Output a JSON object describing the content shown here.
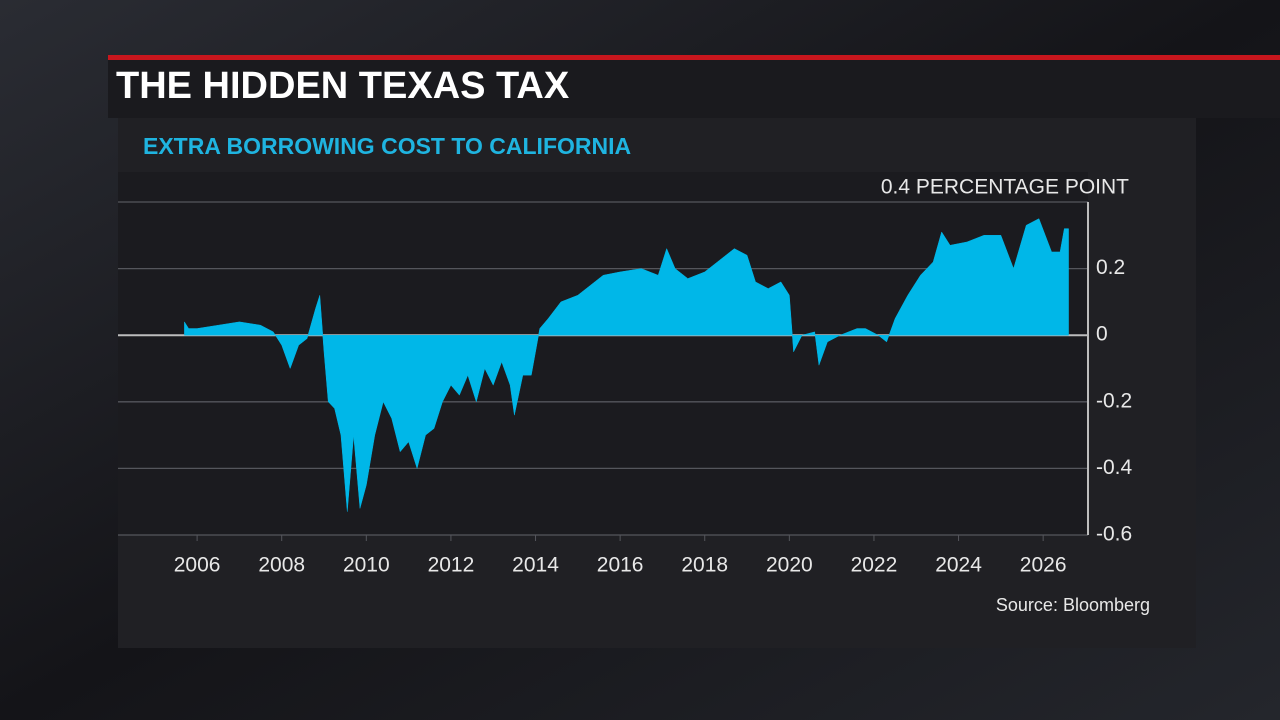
{
  "chart_data": {
    "type": "area",
    "title": "THE HIDDEN TEXAS TAX",
    "subtitle": "EXTRA BORROWING COST TO CALIFORNIA",
    "source": "Source: Bloomberg",
    "color": "#00b7e8",
    "x": [
      2005.7,
      2005.8,
      2006,
      2006.5,
      2007,
      2007.5,
      2007.8,
      2008,
      2008.2,
      2008.4,
      2008.6,
      2008.8,
      2008.9,
      2009.0,
      2009.1,
      2009.25,
      2009.4,
      2009.55,
      2009.7,
      2009.85,
      2010,
      2010.2,
      2010.4,
      2010.6,
      2010.8,
      2011,
      2011.2,
      2011.4,
      2011.6,
      2011.8,
      2012,
      2012.2,
      2012.4,
      2012.6,
      2012.8,
      2013,
      2013.2,
      2013.4,
      2013.5,
      2013.7,
      2013.9,
      2014.1,
      2014.3,
      2014.6,
      2015,
      2015.3,
      2015.6,
      2016,
      2016.5,
      2016.9,
      2017.1,
      2017.3,
      2017.6,
      2018,
      2018.3,
      2018.7,
      2019,
      2019.2,
      2019.5,
      2019.8,
      2020,
      2020.1,
      2020.3,
      2020.6,
      2020.7,
      2020.9,
      2021.2,
      2021.6,
      2021.8,
      2022.1,
      2022.3,
      2022.5,
      2022.8,
      2023.1,
      2023.4,
      2023.6,
      2023.8,
      2024.2,
      2024.6,
      2025,
      2025.3,
      2025.6,
      2025.9,
      2026.2,
      2026.4,
      2026.5,
      2026.6
    ],
    "values": [
      0.04,
      0.02,
      0.02,
      0.03,
      0.04,
      0.03,
      0.01,
      -0.03,
      -0.1,
      -0.03,
      -0.01,
      0.08,
      0.12,
      -0.05,
      -0.2,
      -0.22,
      -0.3,
      -0.53,
      -0.3,
      -0.52,
      -0.45,
      -0.3,
      -0.2,
      -0.25,
      -0.35,
      -0.32,
      -0.4,
      -0.3,
      -0.28,
      -0.2,
      -0.15,
      -0.18,
      -0.12,
      -0.2,
      -0.1,
      -0.15,
      -0.08,
      -0.15,
      -0.24,
      -0.12,
      -0.12,
      0.02,
      0.05,
      0.1,
      0.12,
      0.15,
      0.18,
      0.19,
      0.2,
      0.18,
      0.26,
      0.2,
      0.17,
      0.19,
      0.22,
      0.26,
      0.24,
      0.16,
      0.14,
      0.16,
      0.12,
      -0.05,
      0.0,
      0.01,
      -0.09,
      -0.02,
      0.0,
      0.02,
      0.02,
      0.0,
      -0.02,
      0.05,
      0.12,
      0.18,
      0.22,
      0.31,
      0.27,
      0.28,
      0.3,
      0.3,
      0.2,
      0.33,
      0.35,
      0.25,
      0.25,
      0.32,
      0.32
    ],
    "xlim": [
      2004.13,
      2027.06
    ],
    "xticks": [
      2006,
      2008,
      2010,
      2012,
      2014,
      2016,
      2018,
      2020,
      2022,
      2024,
      2026
    ],
    "ylim": [
      -0.6,
      0.4
    ],
    "yticks": [
      -0.6,
      -0.4,
      -0.2,
      0,
      0.2,
      {
        "value": 0.4,
        "label": "0.4 PERCENTAGE POINT"
      }
    ],
    "grid": true
  }
}
